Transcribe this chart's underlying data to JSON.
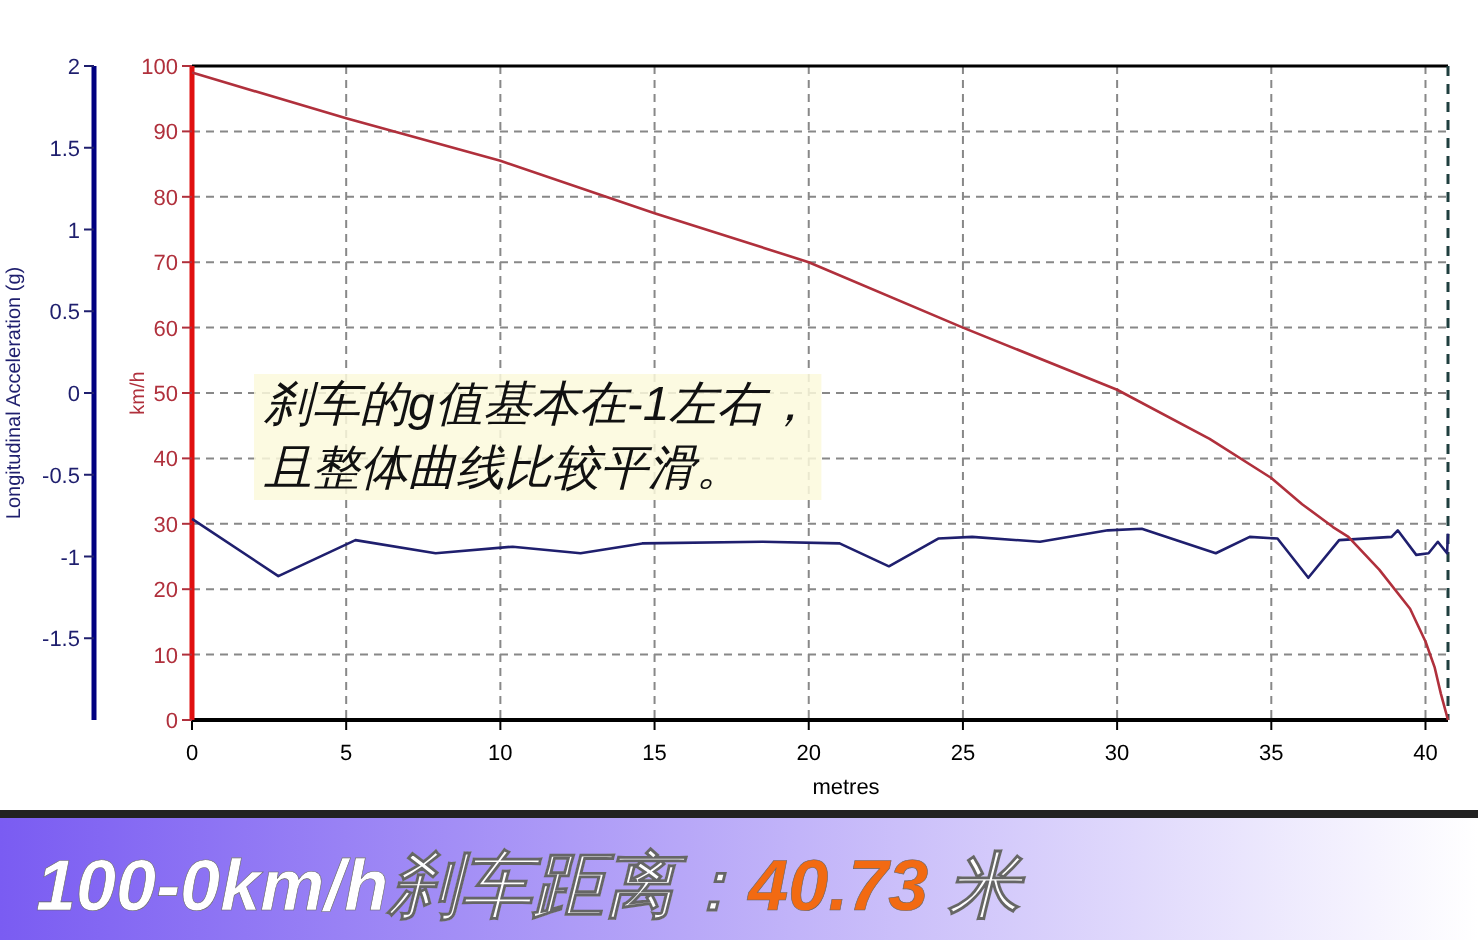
{
  "chart_data": {
    "type": "line",
    "xlabel": "metres",
    "ylabel": "Longitudinal Acceleration (g)",
    "y2label": "km/h",
    "xlim": [
      0,
      40.73
    ],
    "xticks": [
      0,
      5,
      10,
      15,
      20,
      25,
      30,
      35,
      40
    ],
    "ylim": [
      -2,
      2
    ],
    "yticks": [
      -1.5,
      -1,
      -0.5,
      0,
      0.5,
      1,
      1.5,
      2
    ],
    "y2lim": [
      0,
      100
    ],
    "y2ticks": [
      0,
      10,
      20,
      30,
      40,
      50,
      60,
      70,
      80,
      90,
      100
    ],
    "grid": true,
    "line_style": "solid",
    "ref_lines": [
      {
        "axis": "x",
        "value": 40.73,
        "label": null,
        "color": "#1f3f3f",
        "line_style": "dashed"
      }
    ],
    "series": [
      {
        "axis": "y",
        "color": "#1f1f6e",
        "x": [
          0,
          2.8,
          5.3,
          7.9,
          10.4,
          12.6,
          14.6,
          18.5,
          21.0,
          22.6,
          24.2,
          25.3,
          27.5,
          29.7,
          30.8,
          33.2,
          34.3,
          35.2,
          36.2,
          37.2,
          38.9,
          39.1,
          39.7,
          40.1,
          40.4,
          40.7,
          40.73
        ],
        "values": [
          -0.77,
          -1.12,
          -0.9,
          -0.98,
          -0.94,
          -0.98,
          -0.92,
          -0.91,
          -0.92,
          -1.06,
          -0.89,
          -0.88,
          -0.91,
          -0.84,
          -0.83,
          -0.98,
          -0.88,
          -0.89,
          -1.13,
          -0.9,
          -0.88,
          -0.84,
          -0.99,
          -0.98,
          -0.91,
          -0.98,
          -0.86
        ]
      },
      {
        "axis": "y2",
        "color": "#b0303c",
        "x": [
          0,
          5,
          10,
          15,
          20,
          25,
          30,
          33,
          35,
          36,
          37,
          37.5,
          38.5,
          39.5,
          40,
          40.3,
          40.5,
          40.73
        ],
        "values": [
          99,
          92,
          85.5,
          77.5,
          70,
          60,
          50.5,
          43,
          37,
          33,
          29.5,
          28,
          23,
          17,
          12,
          8,
          4,
          0
        ]
      }
    ],
    "annotations": [
      "刹车的g值基本在-1左右，",
      "且整体曲线比较平滑。",
      "100-0km/h刹车距离：",
      "40.73",
      " 米"
    ]
  }
}
